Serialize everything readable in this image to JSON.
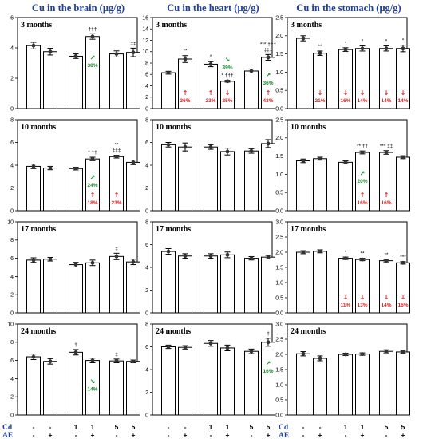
{
  "colors": {
    "title": "#1f3f99",
    "decrease": "#e32020",
    "increase": "#1a8a2a",
    "bar_fill": "#ffffff",
    "bar_stroke": "#000000"
  },
  "x_rows": {
    "cd_label": "Cd",
    "ae_label": "AE",
    "cd_values": [
      "-",
      "-",
      "1",
      "1",
      "5",
      "5"
    ],
    "ae_values": [
      "-",
      "+",
      "-",
      "+",
      "-",
      "+"
    ]
  },
  "chart_data": [
    {
      "type": "bar",
      "title": "Cu in the brain (μg/g)",
      "panel": "3 months",
      "ylim": [
        0,
        6
      ],
      "yticks": [
        0,
        2,
        4,
        6
      ],
      "values": [
        4.15,
        3.75,
        3.45,
        4.75,
        3.6,
        3.7
      ],
      "errors": [
        0.22,
        0.22,
        0.15,
        0.18,
        0.2,
        0.28
      ],
      "annotations": [
        {
          "bar": 3,
          "text": "†††",
          "kind": "sig"
        },
        {
          "bar": 5,
          "text": "‡‡",
          "kind": "sig"
        },
        {
          "bar": 3,
          "text": "38%",
          "kind": "pct",
          "dir": "up",
          "color": "increase"
        }
      ]
    },
    {
      "type": "bar",
      "title": "Cu in the heart (μg/g)",
      "panel": "3 months",
      "ylim": [
        0,
        16
      ],
      "yticks": [
        0,
        2,
        4,
        6,
        8,
        10,
        12,
        14,
        16
      ],
      "values": [
        6.3,
        8.7,
        7.8,
        4.8,
        6.6,
        9.0
      ],
      "errors": [
        0.25,
        0.6,
        0.45,
        0.15,
        0.35,
        0.5
      ],
      "annotations": [
        {
          "bar": 1,
          "text": "**",
          "kind": "sig"
        },
        {
          "bar": 2,
          "text": "*",
          "kind": "sig"
        },
        {
          "bar": 3,
          "text": "* †††",
          "kind": "sig"
        },
        {
          "bar": 5,
          "text": "*** †††",
          "kind": "sig",
          "line2": "‡‡‡"
        },
        {
          "bar": 1,
          "text": "36%",
          "kind": "pct",
          "dir": "up",
          "color": "decrease"
        },
        {
          "bar": 2,
          "text": "23%",
          "kind": "pct",
          "dir": "up",
          "color": "decrease"
        },
        {
          "bar": 3,
          "text": "25%",
          "kind": "pct",
          "dir": "down",
          "color": "decrease"
        },
        {
          "bar": 5,
          "text": "43%",
          "kind": "pct",
          "dir": "up",
          "color": "decrease"
        },
        {
          "bar": 3,
          "text": "39%",
          "kind": "pct",
          "dir": "down",
          "color": "increase",
          "high": true
        },
        {
          "bar": 5,
          "text": "36%",
          "kind": "pct",
          "dir": "up",
          "color": "increase",
          "mid": true
        }
      ]
    },
    {
      "type": "bar",
      "title": "Cu in the stomach (μg/g)",
      "panel": "3 months",
      "ylim": [
        0,
        2.5
      ],
      "yticks": [
        0,
        0.5,
        1.0,
        1.5,
        2.0,
        2.5
      ],
      "values": [
        1.93,
        1.52,
        1.62,
        1.65,
        1.65,
        1.65
      ],
      "errors": [
        0.07,
        0.06,
        0.05,
        0.07,
        0.07,
        0.09
      ],
      "annotations": [
        {
          "bar": 1,
          "text": "**",
          "kind": "sig"
        },
        {
          "bar": 2,
          "text": "*",
          "kind": "sig"
        },
        {
          "bar": 3,
          "text": "*",
          "kind": "sig"
        },
        {
          "bar": 4,
          "text": "*",
          "kind": "sig"
        },
        {
          "bar": 5,
          "text": "*",
          "kind": "sig"
        },
        {
          "bar": 1,
          "text": "21%",
          "kind": "pct",
          "dir": "down",
          "color": "decrease"
        },
        {
          "bar": 2,
          "text": "16%",
          "kind": "pct",
          "dir": "down",
          "color": "decrease"
        },
        {
          "bar": 3,
          "text": "14%",
          "kind": "pct",
          "dir": "down",
          "color": "decrease"
        },
        {
          "bar": 4,
          "text": "14%",
          "kind": "pct",
          "dir": "down",
          "color": "decrease"
        },
        {
          "bar": 5,
          "text": "14%",
          "kind": "pct",
          "dir": "down",
          "color": "decrease"
        }
      ]
    },
    {
      "type": "bar",
      "title": "",
      "panel": "10 months",
      "ylim": [
        0,
        8
      ],
      "yticks": [
        0,
        2,
        4,
        6,
        8
      ],
      "values": [
        3.9,
        3.75,
        3.7,
        4.55,
        4.75,
        4.25
      ],
      "errors": [
        0.2,
        0.15,
        0.12,
        0.15,
        0.12,
        0.2
      ],
      "annotations": [
        {
          "bar": 3,
          "text": "* ††",
          "kind": "sig"
        },
        {
          "bar": 4,
          "text": "**",
          "kind": "sig",
          "line2": "‡‡‡"
        },
        {
          "bar": 3,
          "text": "24%",
          "kind": "pct",
          "dir": "up",
          "color": "increase",
          "mid": true
        },
        {
          "bar": 3,
          "text": "18%",
          "kind": "pct",
          "dir": "up",
          "color": "decrease"
        },
        {
          "bar": 4,
          "text": "23%",
          "kind": "pct",
          "dir": "up",
          "color": "decrease"
        }
      ]
    },
    {
      "type": "bar",
      "title": "",
      "panel": "10 months",
      "ylim": [
        0,
        8
      ],
      "yticks": [
        0,
        2,
        4,
        6,
        8
      ],
      "values": [
        5.8,
        5.6,
        5.6,
        5.2,
        5.25,
        5.9
      ],
      "errors": [
        0.2,
        0.35,
        0.2,
        0.3,
        0.2,
        0.35
      ],
      "annotations": []
    },
    {
      "type": "bar",
      "title": "",
      "panel": "10 months",
      "ylim": [
        0,
        2.5
      ],
      "yticks": [
        0,
        0.5,
        1.0,
        1.5,
        2.0,
        2.5
      ],
      "values": [
        1.37,
        1.43,
        1.33,
        1.6,
        1.6,
        1.47
      ],
      "errors": [
        0.05,
        0.04,
        0.04,
        0.04,
        0.05,
        0.04
      ],
      "annotations": [
        {
          "bar": 3,
          "text": "** ††",
          "kind": "sig"
        },
        {
          "bar": 4,
          "text": "*** ‡‡",
          "kind": "sig"
        },
        {
          "bar": 3,
          "text": "20%",
          "kind": "pct",
          "dir": "up",
          "color": "increase",
          "mid": true
        },
        {
          "bar": 3,
          "text": "16%",
          "kind": "pct",
          "dir": "up",
          "color": "decrease"
        },
        {
          "bar": 4,
          "text": "16%",
          "kind": "pct",
          "dir": "up",
          "color": "decrease"
        }
      ]
    },
    {
      "type": "bar",
      "title": "",
      "panel": "17 months",
      "ylim": [
        0,
        10
      ],
      "yticks": [
        0,
        2,
        4,
        6,
        8,
        10
      ],
      "values": [
        5.8,
        5.9,
        5.3,
        5.5,
        6.2,
        5.6
      ],
      "errors": [
        0.25,
        0.2,
        0.25,
        0.3,
        0.35,
        0.3
      ],
      "annotations": [
        {
          "bar": 4,
          "text": "‡",
          "kind": "sig"
        }
      ]
    },
    {
      "type": "bar",
      "title": "",
      "panel": "17 months",
      "ylim": [
        0,
        8
      ],
      "yticks": [
        0,
        2,
        4,
        6,
        8
      ],
      "values": [
        5.4,
        5.0,
        5.0,
        5.1,
        4.8,
        4.9
      ],
      "errors": [
        0.25,
        0.2,
        0.2,
        0.25,
        0.15,
        0.15
      ],
      "annotations": []
    },
    {
      "type": "bar",
      "title": "",
      "panel": "17 months",
      "ylim": [
        0,
        3.0
      ],
      "yticks": [
        0,
        0.5,
        1.0,
        1.5,
        2.0,
        2.5,
        3.0
      ],
      "values": [
        2.0,
        2.03,
        1.8,
        1.76,
        1.72,
        1.65
      ],
      "errors": [
        0.05,
        0.05,
        0.04,
        0.04,
        0.04,
        0.04
      ],
      "annotations": [
        {
          "bar": 2,
          "text": "*",
          "kind": "sig"
        },
        {
          "bar": 3,
          "text": "**",
          "kind": "sig"
        },
        {
          "bar": 4,
          "text": "**",
          "kind": "sig"
        },
        {
          "bar": 5,
          "text": "***",
          "kind": "sig"
        },
        {
          "bar": 2,
          "text": "11%",
          "kind": "pct",
          "dir": "down",
          "color": "decrease"
        },
        {
          "bar": 3,
          "text": "13%",
          "kind": "pct",
          "dir": "down",
          "color": "decrease"
        },
        {
          "bar": 4,
          "text": "14%",
          "kind": "pct",
          "dir": "down",
          "color": "decrease"
        },
        {
          "bar": 5,
          "text": "16%",
          "kind": "pct",
          "dir": "down",
          "color": "decrease"
        }
      ]
    },
    {
      "type": "bar",
      "title": "",
      "panel": "24 months",
      "ylim": [
        0,
        10
      ],
      "yticks": [
        0,
        2,
        4,
        6,
        8,
        10
      ],
      "values": [
        6.4,
        5.9,
        6.9,
        6.0,
        5.95,
        5.9
      ],
      "errors": [
        0.3,
        0.3,
        0.3,
        0.25,
        0.2,
        0.15
      ],
      "annotations": [
        {
          "bar": 2,
          "text": "†",
          "kind": "sig"
        },
        {
          "bar": 4,
          "text": "‡",
          "kind": "sig"
        },
        {
          "bar": 3,
          "text": "14%",
          "kind": "pct",
          "dir": "down",
          "color": "increase",
          "mid": true
        }
      ]
    },
    {
      "type": "bar",
      "title": "",
      "panel": "24 months",
      "ylim": [
        0,
        8
      ],
      "yticks": [
        0,
        2,
        4,
        6,
        8
      ],
      "values": [
        6.0,
        5.95,
        6.3,
        5.9,
        5.6,
        6.4
      ],
      "errors": [
        0.15,
        0.15,
        0.25,
        0.25,
        0.2,
        0.35
      ],
      "annotations": [
        {
          "bar": 5,
          "text": "†",
          "kind": "sig"
        },
        {
          "bar": 5,
          "text": "16%",
          "kind": "pct",
          "dir": "up",
          "color": "increase",
          "mid": true
        }
      ]
    },
    {
      "type": "bar",
      "title": "",
      "panel": "24 months",
      "ylim": [
        0,
        3.0
      ],
      "yticks": [
        0,
        0.5,
        1.0,
        1.5,
        2.0,
        2.5,
        3.0
      ],
      "values": [
        2.02,
        1.87,
        2.0,
        2.01,
        2.1,
        2.08
      ],
      "errors": [
        0.07,
        0.08,
        0.04,
        0.04,
        0.05,
        0.05
      ],
      "annotations": []
    }
  ]
}
